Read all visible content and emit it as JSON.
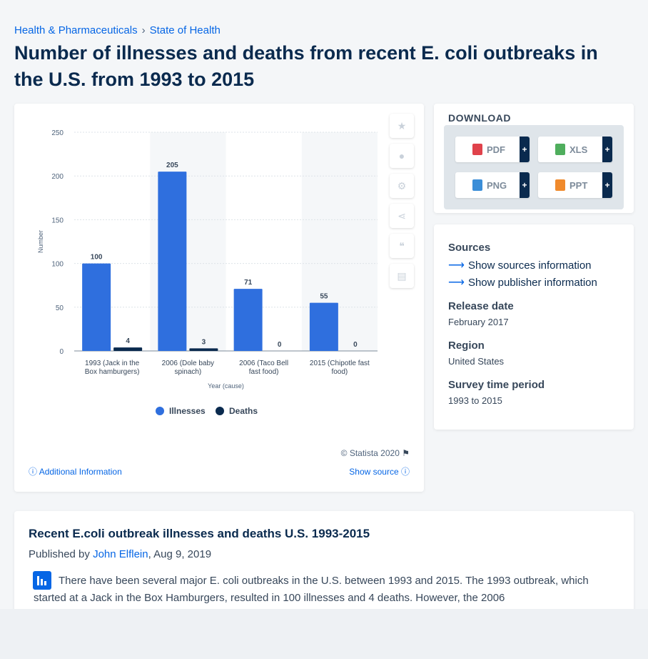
{
  "breadcrumb": {
    "items": [
      "Health & Pharmaceuticals",
      "State of Health"
    ]
  },
  "page": {
    "title": "Number of illnesses and deaths from recent E. coli outbreaks in the U.S. from 1993 to 2015"
  },
  "toolbar": {
    "icons": [
      "star-icon",
      "bell-icon",
      "gear-icon",
      "share-icon",
      "quote-icon",
      "print-icon"
    ]
  },
  "chart_data": {
    "type": "bar",
    "categories": [
      "1993 (Jack in the Box hamburgers)",
      "2006 (Dole baby spinach)",
      "2006 (Taco Bell fast food)",
      "2015 (Chipotle fast food)"
    ],
    "category_lines": [
      [
        "1993 (Jack in the",
        "Box hamburgers)"
      ],
      [
        "2006 (Dole baby",
        "spinach)"
      ],
      [
        "2006 (Taco Bell",
        "fast food)"
      ],
      [
        "2015 (Chipotle fast",
        "food)"
      ]
    ],
    "series": [
      {
        "name": "Illnesses",
        "values": [
          100,
          205,
          71,
          55
        ],
        "color": "#2f6fde"
      },
      {
        "name": "Deaths",
        "values": [
          4,
          3,
          0,
          0
        ],
        "color": "#0a2a4e"
      }
    ],
    "xlabel": "Year (cause)",
    "ylabel": "Number",
    "ylim": [
      0,
      250
    ],
    "yticks": [
      "0",
      "50",
      "100",
      "150",
      "200",
      "250"
    ],
    "grid": true,
    "legend": "bottom"
  },
  "chart_footer": {
    "copyright": "© Statista 2020",
    "additional": "Additional Information",
    "show_source": "Show source"
  },
  "download": {
    "title": "DOWNLOAD",
    "buttons": [
      {
        "label": "PDF",
        "color": "#e0424b"
      },
      {
        "label": "XLS",
        "color": "#4fae5d"
      },
      {
        "label": "PNG",
        "color": "#3b8ed8"
      },
      {
        "label": "PPT",
        "color": "#f08a2c"
      }
    ],
    "plus": "+"
  },
  "meta": {
    "sources_title": "Sources",
    "show_sources": "Show sources information",
    "show_publisher": "Show publisher information",
    "release_date_title": "Release date",
    "release_date": "February 2017",
    "region_title": "Region",
    "region": "United States",
    "survey_title": "Survey time period",
    "survey": "1993 to 2015"
  },
  "article": {
    "title": "Recent E.coli outbreak illnesses and deaths U.S. 1993-2015",
    "published_prefix": "Published by ",
    "author": "John Elflein",
    "date": ", Aug 9, 2019",
    "body": "There have been several major E. coli outbreaks in the U.S. between 1993 and 2015. The 1993 outbreak, which started at a Jack in the Box Hamburgers, resulted in 100 illnesses and 4 deaths. However, the 2006"
  }
}
